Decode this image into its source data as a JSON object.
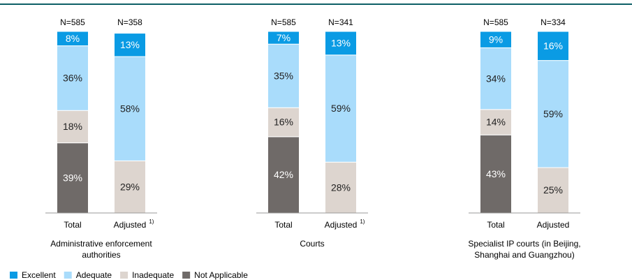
{
  "chart_data": [
    {
      "type": "stacked_bar",
      "title": "Administrative enforcement authorities",
      "categories": [
        "Total",
        "Adjusted"
      ],
      "category_notes": [
        null,
        "1)"
      ],
      "n_labels": [
        "N=585",
        "N=358"
      ],
      "series": [
        {
          "name": "Excellent",
          "color": "#0a9be4",
          "values": [
            8,
            13
          ],
          "value_labels": [
            "8%",
            "13%"
          ]
        },
        {
          "name": "Adequate",
          "color": "#a9dcfb",
          "values": [
            36,
            58
          ],
          "value_labels": [
            "36%",
            "58%"
          ]
        },
        {
          "name": "Inadequate",
          "color": "#ddd5cf",
          "values": [
            18,
            29
          ],
          "value_labels": [
            "18%",
            "29%"
          ]
        },
        {
          "name": "Not Applicable",
          "color": "#6f6a68",
          "values": [
            39,
            null
          ],
          "value_labels": [
            "39%",
            null
          ]
        }
      ]
    },
    {
      "type": "stacked_bar",
      "title": "Courts",
      "categories": [
        "Total",
        "Adjusted"
      ],
      "category_notes": [
        null,
        "1)"
      ],
      "n_labels": [
        "N=585",
        "N=341"
      ],
      "series": [
        {
          "name": "Excellent",
          "color": "#0a9be4",
          "values": [
            7,
            13
          ],
          "value_labels": [
            "7%",
            "13%"
          ]
        },
        {
          "name": "Adequate",
          "color": "#a9dcfb",
          "values": [
            35,
            59
          ],
          "value_labels": [
            "35%",
            "59%"
          ]
        },
        {
          "name": "Inadequate",
          "color": "#ddd5cf",
          "values": [
            16,
            28
          ],
          "value_labels": [
            "16%",
            "28%"
          ]
        },
        {
          "name": "Not Applicable",
          "color": "#6f6a68",
          "values": [
            42,
            null
          ],
          "value_labels": [
            "42%",
            null
          ]
        }
      ]
    },
    {
      "type": "stacked_bar",
      "title": "Specialist IP courts (in Beijing, Shanghai and Guangzhou)",
      "categories": [
        "Total",
        "Adjusted"
      ],
      "n_labels": [
        "N=585",
        "N=334"
      ],
      "series": [
        {
          "name": "Excellent",
          "color": "#0a9be4",
          "values": [
            9,
            16
          ],
          "value_labels": [
            "9%",
            "16%"
          ]
        },
        {
          "name": "Adequate",
          "color": "#a9dcfb",
          "values": [
            34,
            59
          ],
          "value_labels": [
            "34%",
            "59%"
          ]
        },
        {
          "name": "Inadequate",
          "color": "#ddd5cf",
          "values": [
            14,
            25
          ],
          "value_labels": [
            "14%",
            "25%"
          ]
        },
        {
          "name": "Not Applicable",
          "color": "#6f6a68",
          "values": [
            43,
            null
          ],
          "value_labels": [
            "43%",
            null
          ]
        }
      ]
    }
  ]
}
